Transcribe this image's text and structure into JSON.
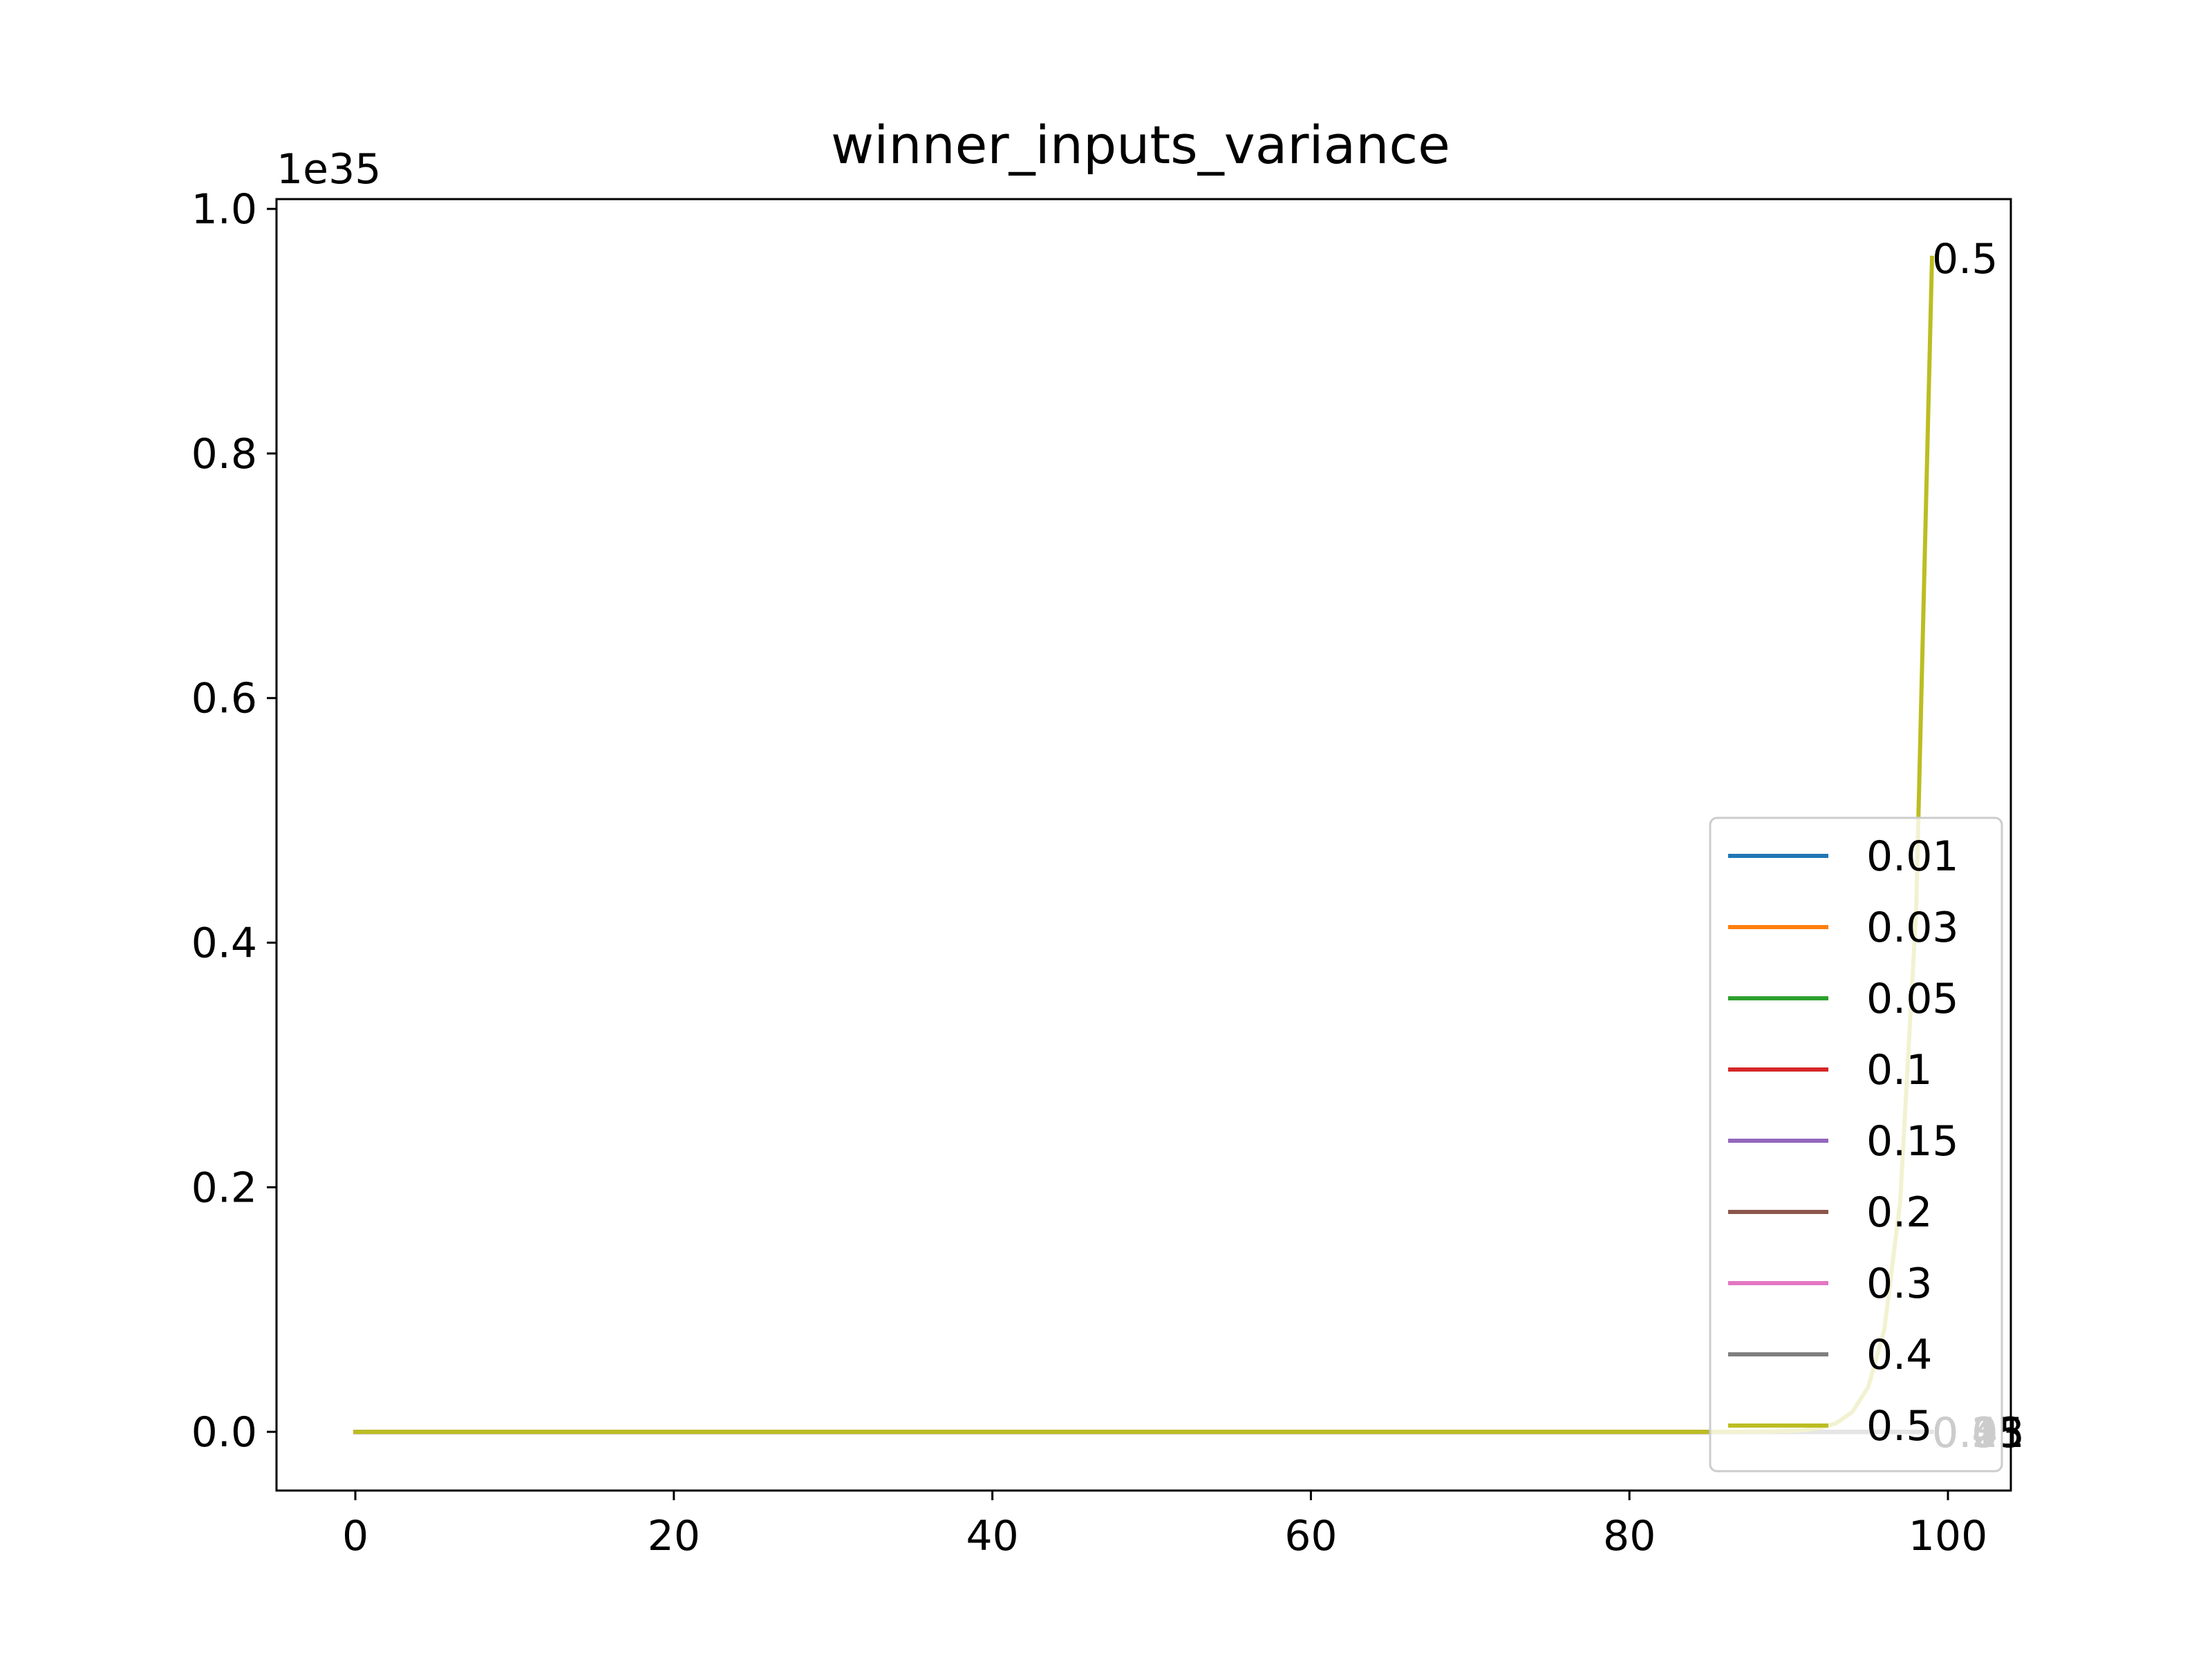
{
  "chart_data": {
    "type": "line",
    "title": "winner_inputs_variance",
    "xlabel": "",
    "ylabel": "",
    "y_offset_text": "1e35",
    "y_scale_factor": 1e+35,
    "xlim": [
      -4.95,
      103.95
    ],
    "ylim": [
      -4.8e+33,
      1.008e+35
    ],
    "x_ticks": [
      0,
      20,
      40,
      60,
      80,
      100
    ],
    "y_ticks": [
      0,
      2e+34,
      4e+34,
      6e+34,
      8e+34,
      1e+35
    ],
    "x_tick_labels": [
      "0",
      "20",
      "40",
      "60",
      "80",
      "100"
    ],
    "y_tick_labels": [
      "0.0",
      "0.2",
      "0.4",
      "0.6",
      "0.8",
      "1.0"
    ],
    "grid": false,
    "legend_position": "lower-right",
    "x_start": 0,
    "x_end": 99,
    "series": [
      {
        "name": "0.01",
        "color": "#1f77b4",
        "end_label": "0.01",
        "growth_base": 1.0
      },
      {
        "name": "0.03",
        "color": "#ff7f0e",
        "end_label": "0.03",
        "growth_base": 1.0
      },
      {
        "name": "0.05",
        "color": "#2ca02c",
        "end_label": "0.05",
        "growth_base": 1.0
      },
      {
        "name": "0.1",
        "color": "#d62728",
        "end_label": "0.1",
        "growth_base": 1.0
      },
      {
        "name": "0.15",
        "color": "#9467bd",
        "end_label": "0.15",
        "growth_base": 1.0
      },
      {
        "name": "0.2",
        "color": "#8c564b",
        "end_label": "0.2",
        "growth_base": 1.0
      },
      {
        "name": "0.3",
        "color": "#e377c2",
        "end_label": "0.3",
        "growth_base": 1.0
      },
      {
        "name": "0.4",
        "color": "#7f7f7f",
        "end_label": "0.4",
        "growth_base": 1.0
      },
      {
        "name": "0.5",
        "color": "#bcbd22",
        "end_label": "0.5",
        "growth_base": 2.26,
        "final_value": 9.6e+34
      }
    ]
  }
}
